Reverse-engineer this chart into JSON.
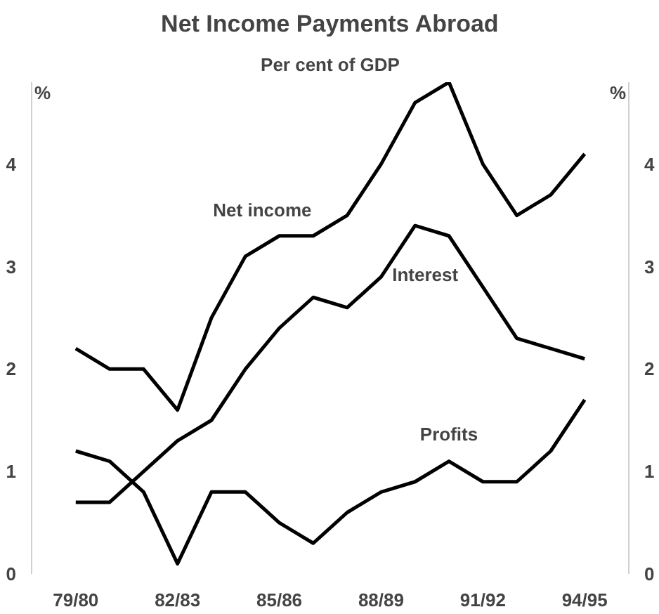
{
  "chart_data": {
    "type": "line",
    "title": "Net Income Payments Abroad",
    "subtitle": "Per cent of GDP",
    "ylabel": "%",
    "y2label": "%",
    "categories": [
      "79/80",
      null,
      null,
      "82/83",
      null,
      null,
      "85/86",
      null,
      null,
      "88/89",
      null,
      null,
      "91/92",
      null,
      null,
      "94/95"
    ],
    "series": [
      {
        "name": "Net income",
        "color": "#000000",
        "values": [
          2.2,
          2.0,
          2.0,
          1.6,
          2.5,
          3.1,
          3.3,
          3.3,
          3.5,
          4.0,
          4.6,
          4.8,
          4.0,
          3.5,
          3.7,
          4.1
        ]
      },
      {
        "name": "Interest",
        "color": "#000000",
        "values": [
          0.7,
          0.7,
          1.0,
          1.3,
          1.5,
          2.0,
          2.4,
          2.7,
          2.6,
          2.9,
          3.4,
          3.3,
          2.8,
          2.3,
          2.2,
          2.1
        ]
      },
      {
        "name": "Profits",
        "color": "#000000",
        "values": [
          1.2,
          1.1,
          0.8,
          0.1,
          0.8,
          0.8,
          0.5,
          0.3,
          0.6,
          0.8,
          0.9,
          1.1,
          0.9,
          0.9,
          1.2,
          1.7
        ]
      }
    ],
    "ylim": [
      0,
      4.8
    ],
    "yticks": [
      0,
      1,
      2,
      3,
      4
    ],
    "y2lim": [
      0,
      4.8
    ],
    "y2ticks": [
      0,
      1,
      2,
      3,
      4
    ],
    "grid": false,
    "line_style": "solid",
    "marker": "none"
  }
}
